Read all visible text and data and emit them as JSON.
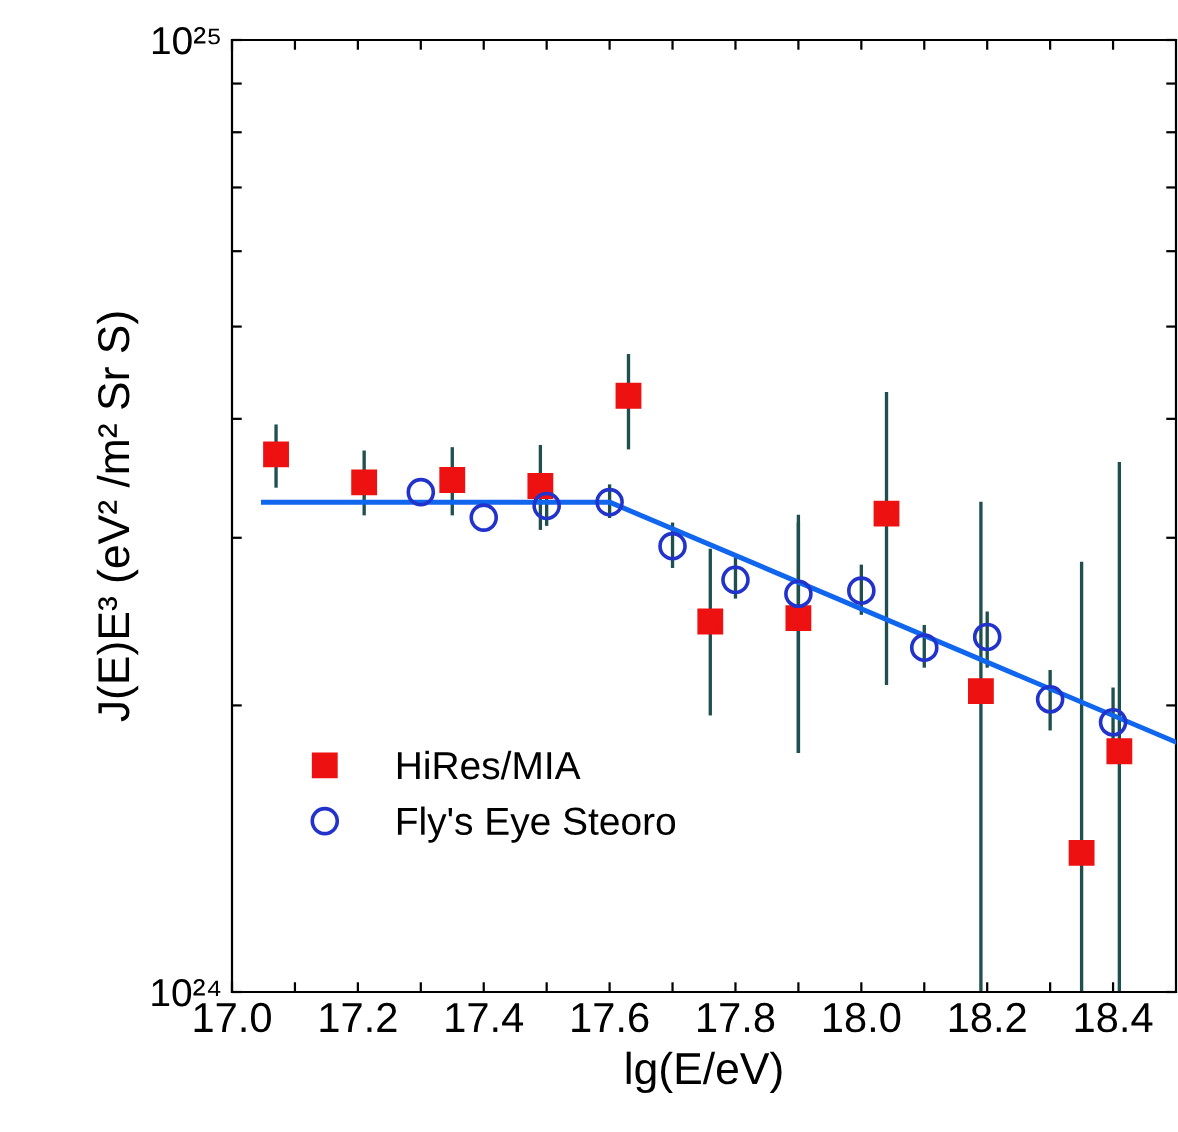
{
  "chart_data": {
    "type": "scatter",
    "xlabel": "lg(E/eV)",
    "ylabel": "J(E)E³ (eV² /m² Sr S)",
    "log": "y",
    "xlim": [
      17.0,
      18.5
    ],
    "ylim": [
      1e+24,
      1e+25
    ],
    "xticks": [
      {
        "value": 17.0,
        "label": "17.0"
      },
      {
        "value": 17.1,
        "label": null
      },
      17.2,
      {
        "value": 17.3,
        "label": null
      },
      17.4,
      {
        "value": 17.5,
        "label": null
      },
      17.6,
      {
        "value": 17.7,
        "label": null
      },
      17.8,
      {
        "value": 17.9,
        "label": null
      },
      {
        "value": 18.0,
        "label": "18.0"
      },
      {
        "value": 18.1,
        "label": null
      },
      18.2,
      {
        "value": 18.3,
        "label": null
      },
      18.4
    ],
    "yticks": [
      {
        "value": 1e+24,
        "label": "10²⁴"
      },
      {
        "value": 2e+24,
        "label": null
      },
      {
        "value": 3e+24,
        "label": null
      },
      {
        "value": 4e+24,
        "label": null
      },
      {
        "value": 5e+24,
        "label": null
      },
      {
        "value": 6e+24,
        "label": null
      },
      {
        "value": 7e+24,
        "label": null
      },
      {
        "value": 8e+24,
        "label": null
      },
      {
        "value": 9e+24,
        "label": null
      },
      {
        "value": 1e+25,
        "label": "10²⁵"
      }
    ],
    "grid": false,
    "legend": "bottom left",
    "series": [
      {
        "name": "HiRes/MIA",
        "marker": "square",
        "color": "#ee1111",
        "x": [
          17.07,
          17.21,
          17.35,
          17.49,
          17.63,
          17.76,
          17.9,
          18.04,
          18.19,
          18.35,
          18.41
        ],
        "values": [
          3.67e+24,
          3.43e+24,
          3.45e+24,
          3.4e+24,
          4.23e+24,
          2.45e+24,
          2.47e+24,
          3.18e+24,
          2.07e+24,
          1.4e+24,
          1.79e+24
        ],
        "errors": [
          [
            3.4e+24,
            3.93e+24
          ],
          [
            3.18e+24,
            3.69e+24
          ],
          [
            3.18e+24,
            3.72e+24
          ],
          [
            3.07e+24,
            3.74e+24
          ],
          [
            3.73e+24,
            4.66e+24
          ],
          [
            1.96e+24,
            2.91e+24
          ],
          [
            1.79e+24,
            3.16e+24
          ],
          [
            2.11e+24,
            4.25e+24
          ],
          [
            1e+24,
            3.26e+24
          ],
          [
            1e+24,
            2.82e+24
          ],
          [
            1e+24,
            3.59e+24
          ]
        ]
      },
      {
        "name": "Fly's Eye Steoro",
        "marker": "circle",
        "color": "#2233cc",
        "x": [
          17.3,
          17.4,
          17.5,
          17.6,
          17.7,
          17.8,
          17.9,
          18.0,
          18.1,
          18.2,
          18.3,
          18.4
        ],
        "values": [
          3.35e+24,
          3.15e+24,
          3.24e+24,
          3.27e+24,
          2.94e+24,
          2.71e+24,
          2.62e+24,
          2.64e+24,
          2.3e+24,
          2.36e+24,
          2.03e+24,
          1.92e+24
        ],
        "errors": [
          null,
          null,
          [
            3.1e+24,
            3.4e+24
          ],
          [
            3.16e+24,
            3.4e+24
          ],
          [
            2.8e+24,
            3.1e+24
          ],
          [
            2.6e+24,
            2.85e+24
          ],
          [
            1.79e+24,
            3.1e+24
          ],
          [
            2.5e+24,
            2.8e+24
          ],
          [
            2.2e+24,
            2.42e+24
          ],
          [
            2.2e+24,
            2.5e+24
          ],
          [
            1.89e+24,
            2.17e+24
          ],
          [
            1.82e+24,
            2.08e+24
          ]
        ]
      },
      {
        "type": "line",
        "color": "#1166ee",
        "x": [
          17.05,
          17.6,
          18.5
        ],
        "values": [
          3.27e+24,
          3.27e+24,
          1.83e+24
        ]
      }
    ]
  }
}
